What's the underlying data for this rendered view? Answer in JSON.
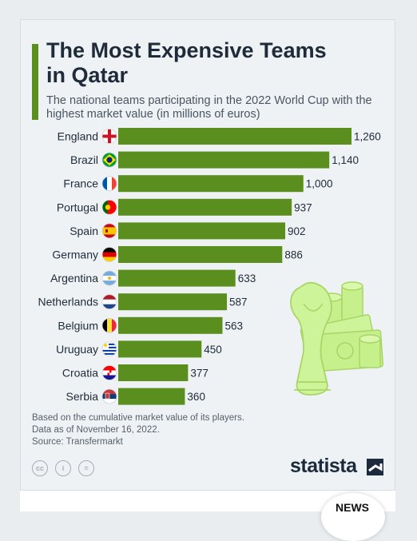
{
  "title": "The Most Expensive Teams in Qatar",
  "subtitle": "The national teams participating in the 2022 World Cup with the highest market value (in millions of euros)",
  "notes": [
    "Based on the cumulative market value of its players.",
    "Data as of November 16, 2022.",
    "Source: Transfermarkt"
  ],
  "brand": "statista",
  "license_icons": [
    "cc",
    "i",
    "="
  ],
  "badge": "NEWS",
  "colors": {
    "bar": "#5a8e1e",
    "accent": "#5a8e1e",
    "title": "#1f2a3a",
    "illustration": "#bff07a"
  },
  "chart_data": {
    "type": "bar",
    "orientation": "horizontal",
    "title": "The Most Expensive Teams in Qatar",
    "categories": [
      "England",
      "Brazil",
      "France",
      "Portugal",
      "Spain",
      "Germany",
      "Argentina",
      "Netherlands",
      "Belgium",
      "Uruguay",
      "Croatia",
      "Serbia"
    ],
    "values": [
      1260,
      1140,
      1000,
      937,
      902,
      886,
      633,
      587,
      563,
      450,
      377,
      360
    ],
    "value_labels": [
      "1,260",
      "1,140",
      "1,000",
      "937",
      "902",
      "886",
      "633",
      "587",
      "563",
      "450",
      "377",
      "360"
    ],
    "flags": [
      "england-flag-icon",
      "brazil-flag-icon",
      "france-flag-icon",
      "portugal-flag-icon",
      "spain-flag-icon",
      "germany-flag-icon",
      "argentina-flag-icon",
      "netherlands-flag-icon",
      "belgium-flag-icon",
      "uruguay-flag-icon",
      "croatia-flag-icon",
      "serbia-flag-icon"
    ],
    "grid": false
  }
}
